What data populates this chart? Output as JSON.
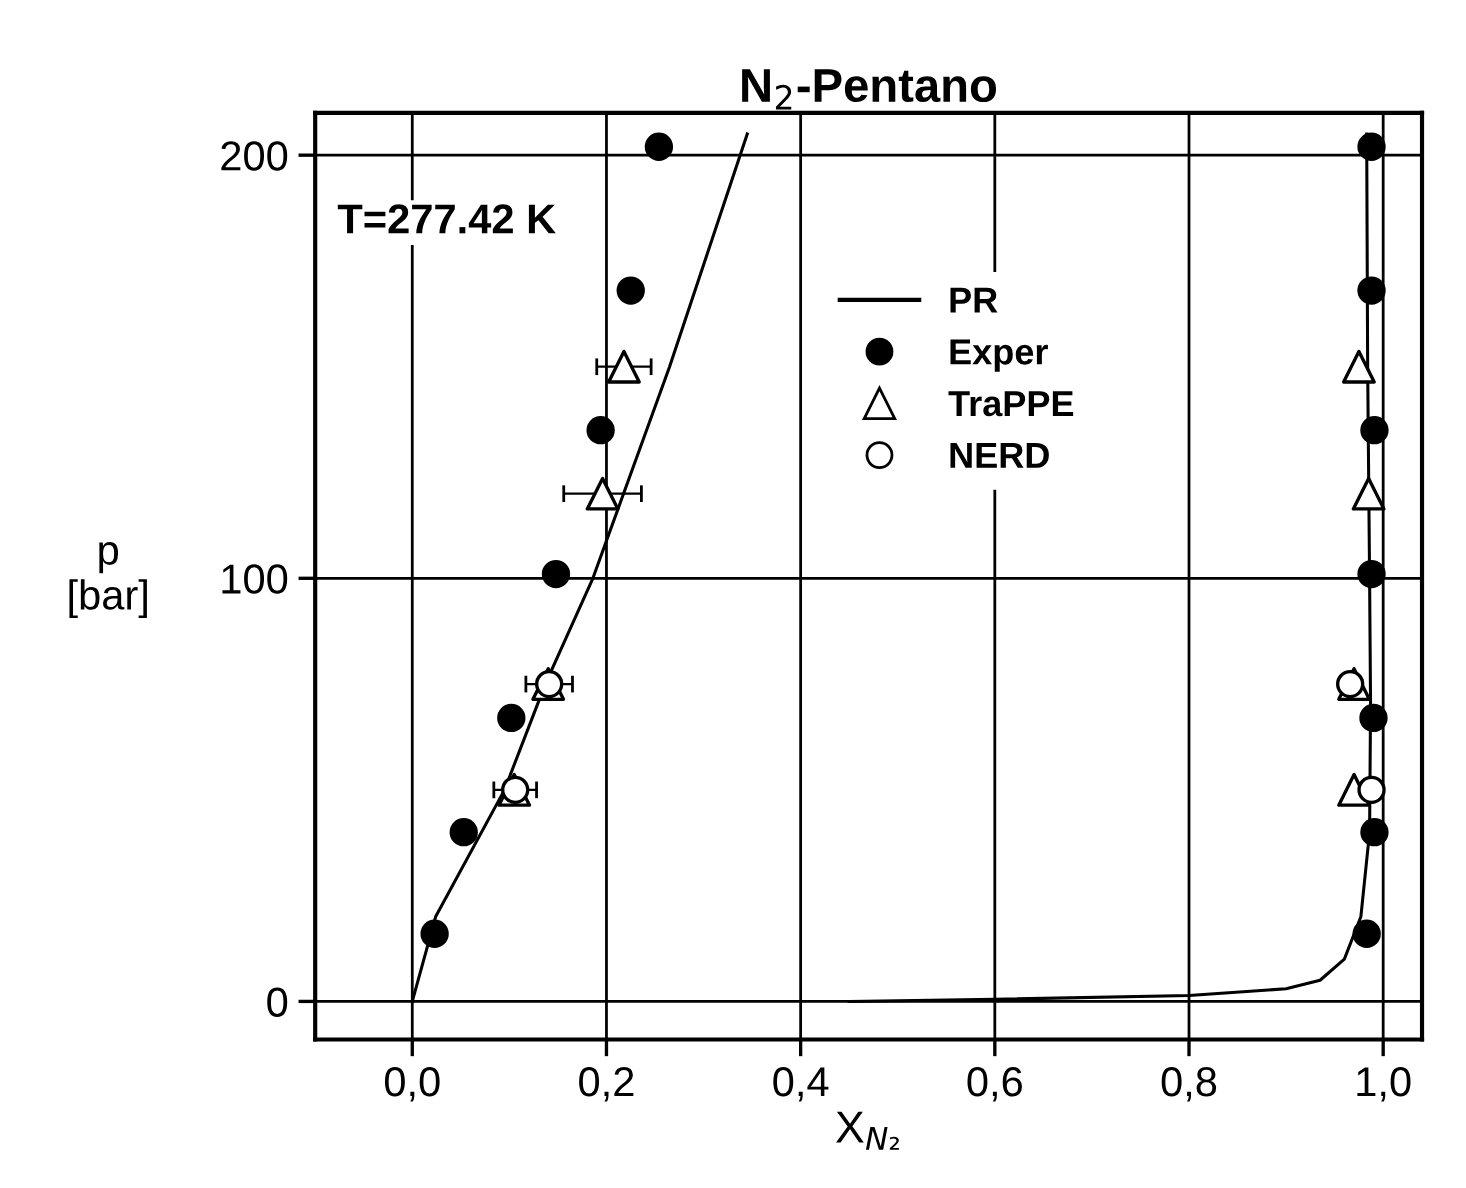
{
  "chart_data": {
    "type": "scatter",
    "title": "N$_{2}$-Pentano",
    "xlabel": "X$_{N₂}$",
    "ylabel": "p\n[bar]",
    "annotations": [
      "T=277.42 K"
    ],
    "xlim": [
      -0.1,
      1.04
    ],
    "ylim": [
      -9,
      210
    ],
    "xticks": [
      {
        "value": 0,
        "label": "0,0"
      },
      {
        "value": 0.2,
        "label": "0,2"
      },
      {
        "value": 0.4,
        "label": "0,4"
      },
      {
        "value": 0.6,
        "label": "0,6"
      },
      {
        "value": 0.8,
        "label": "0,8"
      },
      {
        "value": 1.0,
        "label": "1,0"
      }
    ],
    "yticks": [
      0,
      100,
      200
    ],
    "grid": true,
    "legend": "top",
    "series": [
      {
        "name": "PR",
        "type": "line",
        "color": "#000000",
        "marker": "none",
        "line_style": "solid",
        "x": [
          0,
          0.024,
          0.095,
          0.137,
          0.186,
          0.265,
          0.345,
          null,
          0.45,
          0.6,
          0.8,
          0.9,
          0.935,
          0.96,
          0.977,
          0.986,
          0.987,
          0.986,
          0.984,
          0.983
        ],
        "values": [
          0,
          20,
          50,
          75,
          100,
          150,
          205,
          null,
          0,
          0.5,
          1.4,
          3,
          5,
          10,
          20,
          40,
          70,
          100,
          150,
          205
        ]
      },
      {
        "name": "Exper",
        "color": "#000000",
        "marker": "circle",
        "x": [
          0.023,
          0.053,
          0.102,
          0.148,
          0.194,
          0.225,
          0.254,
          0.983,
          0.991,
          0.99,
          0.988,
          0.991,
          0.988,
          0.988
        ],
        "values": [
          16,
          40,
          67,
          101,
          135,
          168,
          202,
          16,
          40,
          67,
          101,
          135,
          168,
          202
        ]
      },
      {
        "name": "TraPPE",
        "color": "#ffffff",
        "marker": "triangle",
        "x": [
          0.105,
          0.14,
          0.196,
          0.218,
          0.97,
          0.97,
          0.985,
          0.975
        ],
        "values": [
          50,
          75,
          120,
          150,
          50,
          75,
          120,
          150
        ],
        "xerrors": [
          null,
          null,
          0.04,
          0.028,
          null,
          null,
          null,
          null
        ]
      },
      {
        "name": "NERD",
        "color": "#ffffff",
        "marker": "circle",
        "x": [
          0.106,
          0.141,
          0.988,
          0.966
        ],
        "values": [
          50,
          75,
          50,
          75
        ],
        "xerrors": [
          0.022,
          0.024,
          0.01,
          0.01
        ]
      }
    ]
  }
}
